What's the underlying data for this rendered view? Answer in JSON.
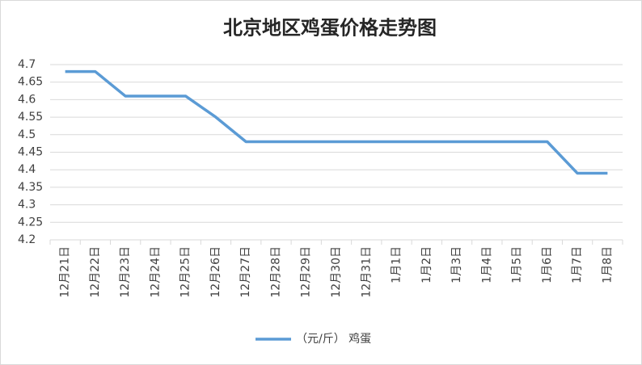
{
  "chart_data": {
    "type": "line",
    "title": "北京地区鸡蛋价格走势图",
    "categories": [
      "12月21日",
      "12月22日",
      "12月23日",
      "12月24日",
      "12月25日",
      "12月26日",
      "12月27日",
      "12月28日",
      "12月29日",
      "12月30日",
      "12月31日",
      "1月1日",
      "1月2日",
      "1月3日",
      "1月4日",
      "1月5日",
      "1月6日",
      "1月7日",
      "1月8日"
    ],
    "series": [
      {
        "name": "（元/斤） 鸡蛋",
        "color": "#5b9bd5",
        "values": [
          4.68,
          4.68,
          4.61,
          4.61,
          4.61,
          4.55,
          4.48,
          4.48,
          4.48,
          4.48,
          4.48,
          4.48,
          4.48,
          4.48,
          4.48,
          4.48,
          4.48,
          4.39,
          4.39
        ]
      }
    ],
    "ylim": [
      4.2,
      4.7
    ],
    "yticks": [
      4.2,
      4.25,
      4.3,
      4.35,
      4.4,
      4.45,
      4.5,
      4.55,
      4.6,
      4.65,
      4.7
    ],
    "grid": true,
    "legend": "bottom"
  }
}
